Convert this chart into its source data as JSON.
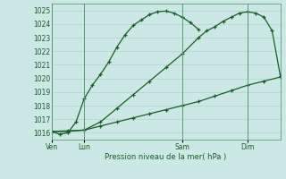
{
  "title": "",
  "xlabel": "Pression niveau de la mer( hPa )",
  "ylabel": "",
  "ylim": [
    1015.5,
    1025.5
  ],
  "yticks": [
    1016,
    1017,
    1018,
    1019,
    1020,
    1021,
    1022,
    1023,
    1024,
    1025
  ],
  "background_color": "#cce8e4",
  "grid_color": "#aad4cc",
  "line_color": "#1a5c2a",
  "xtick_labels": [
    "Ven",
    "Lun",
    "Sam",
    "Dim"
  ],
  "xtick_positions": [
    0,
    24,
    96,
    144
  ],
  "total_hours": 168,
  "line1": {
    "x": [
      0,
      6,
      12,
      18,
      24,
      30,
      36,
      42,
      48,
      54,
      60,
      66,
      72,
      78,
      84,
      90,
      96,
      102,
      108
    ],
    "y": [
      1016.1,
      1015.9,
      1016.0,
      1016.8,
      1018.5,
      1019.5,
      1020.3,
      1021.2,
      1022.3,
      1023.2,
      1023.9,
      1024.3,
      1024.7,
      1024.9,
      1024.95,
      1024.8,
      1024.5,
      1024.1,
      1023.6
    ]
  },
  "line2": {
    "x": [
      0,
      12,
      24,
      36,
      48,
      60,
      72,
      84,
      96,
      108,
      120,
      132,
      144,
      156,
      168
    ],
    "y": [
      1016.1,
      1016.15,
      1016.2,
      1016.5,
      1016.8,
      1017.1,
      1017.4,
      1017.7,
      1018.0,
      1018.3,
      1018.7,
      1019.1,
      1019.5,
      1019.8,
      1020.1
    ]
  },
  "line3": {
    "x": [
      0,
      12,
      24,
      36,
      48,
      60,
      72,
      84,
      96,
      108,
      114,
      120,
      126,
      132,
      138,
      144,
      150,
      156,
      162,
      168
    ],
    "y": [
      1016.1,
      1016.1,
      1016.2,
      1016.8,
      1017.8,
      1018.8,
      1019.8,
      1020.8,
      1021.8,
      1023.0,
      1023.5,
      1023.8,
      1024.2,
      1024.5,
      1024.8,
      1024.9,
      1024.8,
      1024.5,
      1023.5,
      1020.2
    ]
  },
  "vline_positions": [
    0,
    24,
    96,
    144
  ],
  "vline_color": "#5a9a7a"
}
